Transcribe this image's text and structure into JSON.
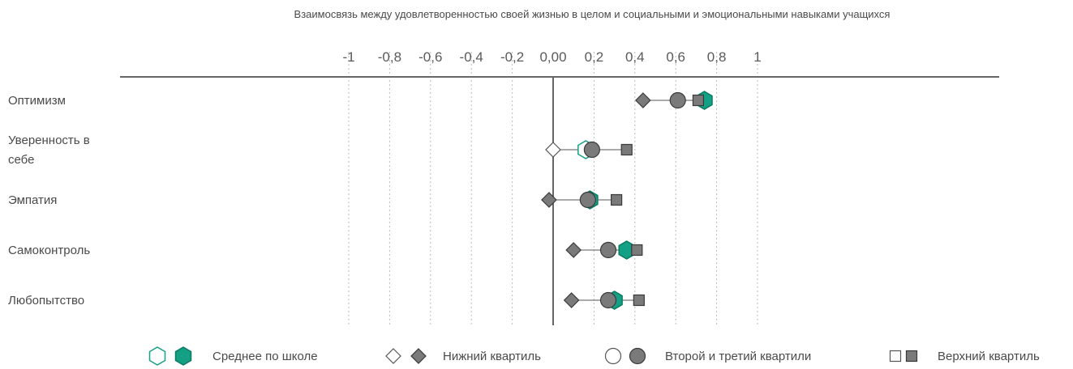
{
  "chart_data": {
    "type": "dot-range",
    "title": "Взаимосвязь между удовлетворенностью своей жизнью в целом и социальными и эмоциональными навыками учащихся",
    "xlim": [
      -1,
      1
    ],
    "x_ticks": [
      "-1",
      "-0,8",
      "-0,6",
      "-0,4",
      "-0,2",
      "0,00",
      "0,2",
      "0,4",
      "0,6",
      "0,8",
      "1"
    ],
    "x_tick_values": [
      -1,
      -0.8,
      -0.6,
      -0.4,
      -0.2,
      0,
      0.2,
      0.4,
      0.6,
      0.8,
      1
    ],
    "grid": "vertical-dotted",
    "legend_position": "bottom",
    "categories": [
      {
        "label_lines": [
          "Оптимизм"
        ],
        "school_mean": 0.74,
        "school_mean_significant": true,
        "bottom_quartile": 0.44,
        "bottom_quartile_significant": true,
        "middle_quartiles": 0.61,
        "middle_quartiles_significant": true,
        "top_quartile": 0.71,
        "top_quartile_significant": true
      },
      {
        "label_lines": [
          "Уверенность в",
          "себе"
        ],
        "school_mean": 0.16,
        "school_mean_significant": false,
        "bottom_quartile": 0.0,
        "bottom_quartile_significant": false,
        "middle_quartiles": 0.19,
        "middle_quartiles_significant": true,
        "top_quartile": 0.36,
        "top_quartile_significant": true
      },
      {
        "label_lines": [
          "Эмпатия"
        ],
        "school_mean": 0.18,
        "school_mean_significant": true,
        "bottom_quartile": -0.02,
        "bottom_quartile_significant": true,
        "middle_quartiles": 0.17,
        "middle_quartiles_significant": true,
        "top_quartile": 0.31,
        "top_quartile_significant": true
      },
      {
        "label_lines": [
          "Самоконтроль"
        ],
        "school_mean": 0.36,
        "school_mean_significant": true,
        "bottom_quartile": 0.1,
        "bottom_quartile_significant": true,
        "middle_quartiles": 0.27,
        "middle_quartiles_significant": true,
        "top_quartile": 0.41,
        "top_quartile_significant": true
      },
      {
        "label_lines": [
          "Любопытство"
        ],
        "school_mean": 0.3,
        "school_mean_significant": true,
        "bottom_quartile": 0.09,
        "bottom_quartile_significant": true,
        "middle_quartiles": 0.27,
        "middle_quartiles_significant": true,
        "top_quartile": 0.42,
        "top_quartile_significant": true
      }
    ],
    "legend": [
      {
        "key": "school_mean",
        "label": "Среднее по школе"
      },
      {
        "key": "bottom_quartile",
        "label": "Нижний квартиль"
      },
      {
        "key": "middle_quartiles",
        "label": "Второй и третий квартили"
      },
      {
        "key": "top_quartile",
        "label": "Верхний квартиль"
      }
    ],
    "colors": {
      "school_mean": "#13a084",
      "marker_gray": "#7a7a7a",
      "axis": "#666666",
      "grid": "#bbbbbb",
      "range_line": "#555555"
    }
  }
}
